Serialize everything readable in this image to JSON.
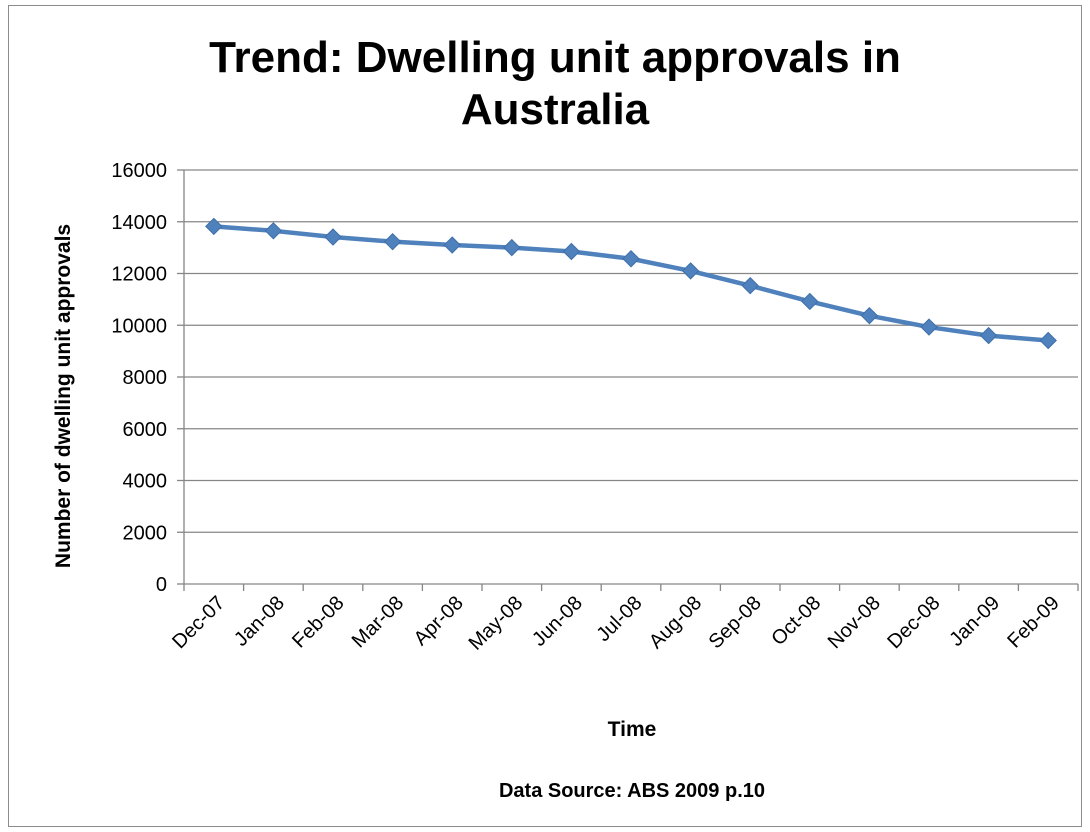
{
  "chart_data": {
    "type": "line",
    "title_lines": [
      "Trend: Dwelling unit approvals in",
      "Australia"
    ],
    "xlabel": "Time",
    "ylabel": "Number of dwelling unit approvals",
    "source": "Data Source: ABS 2009 p.10",
    "categories": [
      "Dec-07",
      "Jan-08",
      "Feb-08",
      "Mar-08",
      "Apr-08",
      "May-08",
      "Jun-08",
      "Jul-08",
      "Aug-08",
      "Sep-08",
      "Oct-08",
      "Nov-08",
      "Dec-08",
      "Jan-09",
      "Feb-09"
    ],
    "series": [
      {
        "values": [
          13820,
          13650,
          13410,
          13230,
          13100,
          13000,
          12850,
          12570,
          12100,
          11530,
          10920,
          10370,
          9930,
          9600,
          9410
        ],
        "color": "#4f81bd",
        "marker": "diamond"
      }
    ],
    "ylim": [
      0,
      16000
    ],
    "yticks": [
      0,
      2000,
      4000,
      6000,
      8000,
      10000,
      12000,
      14000,
      16000
    ],
    "grid": true,
    "legend": "none"
  }
}
